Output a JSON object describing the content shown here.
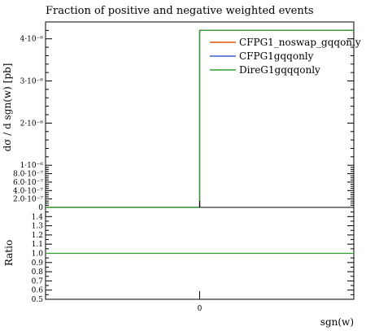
{
  "chart_data": {
    "type": "line",
    "title": "Fraction of positive and negative weighted events",
    "xlabel": "sgn(w)",
    "ylabel_main": "dσ / d sgn(w) [pb]",
    "ylabel_ratio": "Ratio",
    "x_tick_labels": [
      "0"
    ],
    "main": {
      "xlim": [
        -1,
        1
      ],
      "ylim": [
        0,
        4.4e-06
      ],
      "y_ticks": [
        {
          "value": 0,
          "label": "0"
        },
        {
          "value": 2e-07,
          "label": "2.0·10⁻⁷"
        },
        {
          "value": 4e-07,
          "label": "4.0·10⁻⁷"
        },
        {
          "value": 6e-07,
          "label": "6.0·10⁻⁷"
        },
        {
          "value": 8e-07,
          "label": "8.0·10⁻⁷"
        },
        {
          "value": 1e-06,
          "label": "1·10⁻⁶"
        },
        {
          "value": 2e-06,
          "label": "2·10⁻⁶"
        },
        {
          "value": 3e-06,
          "label": "3·10⁻⁶"
        },
        {
          "value": 4e-06,
          "label": "4·10⁻⁶"
        }
      ],
      "series": [
        {
          "name": "CFPG1_noswap_gqqonly",
          "color": "#e6550d",
          "bins": [
            [
              -1,
              0,
              0
            ],
            [
              0,
              1,
              4.2e-06
            ]
          ]
        },
        {
          "name": "CFPG1gqqonly",
          "color": "#3a5fcd",
          "bins": [
            [
              -1,
              0,
              0
            ],
            [
              0,
              1,
              4.2e-06
            ]
          ]
        },
        {
          "name": "DireG1gqqqonly",
          "color": "#2ca02c",
          "bins": [
            [
              -1,
              0,
              0
            ],
            [
              0,
              1,
              4.2e-06
            ]
          ]
        }
      ]
    },
    "ratio": {
      "ylim": [
        0.5,
        1.5
      ],
      "y_tick_labels": [
        "0.5",
        "0.6",
        "0.7",
        "0.8",
        "0.9",
        "1.0",
        "1.1",
        "1.2",
        "1.3",
        "1.4"
      ],
      "y_tick_values": [
        0.5,
        0.6,
        0.7,
        0.8,
        0.9,
        1.0,
        1.1,
        1.2,
        1.3,
        1.4
      ],
      "value": 1.0,
      "line_color": "#2ca02c"
    },
    "legend_position": "top-right",
    "grid": false
  }
}
